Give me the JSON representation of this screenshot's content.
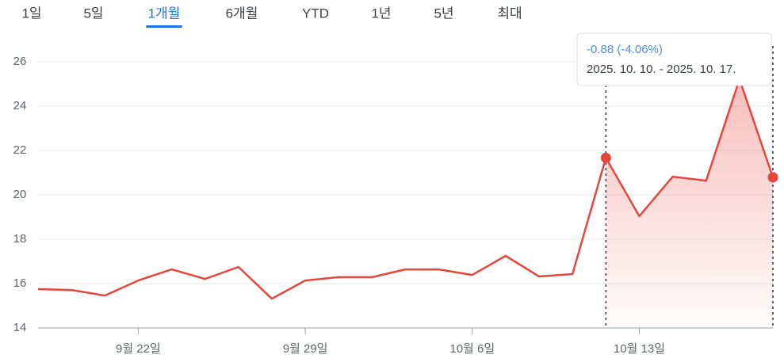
{
  "tabs": [
    "1일",
    "5일",
    "1개월",
    "6개월",
    "YTD",
    "1년",
    "5년",
    "최대"
  ],
  "selected_tab": 2,
  "tooltip": {
    "change": "-0.88 (-4.06%)",
    "range": "2025. 10. 10. - 2025. 10. 17."
  },
  "chart_data": {
    "type": "line",
    "categories": [
      null,
      null,
      null,
      "9월 22일",
      null,
      null,
      null,
      null,
      "9월 29일",
      null,
      null,
      null,
      null,
      "10월 6일",
      null,
      null,
      null,
      null,
      "10월 13일",
      null,
      null,
      null,
      null
    ],
    "values": [
      15.75,
      15.71,
      15.46,
      16.14,
      16.64,
      16.21,
      16.75,
      15.32,
      16.14,
      16.29,
      16.29,
      16.64,
      16.64,
      16.39,
      17.25,
      16.32,
      16.43,
      21.67,
      19.04,
      20.82,
      20.64,
      25.21,
      20.79
    ],
    "color": "#e8453c",
    "ylim": [
      14,
      26
    ],
    "yticks": [
      14,
      16,
      18,
      20,
      22,
      24,
      26
    ],
    "grid": true,
    "highlight_range": [
      17,
      22
    ]
  }
}
